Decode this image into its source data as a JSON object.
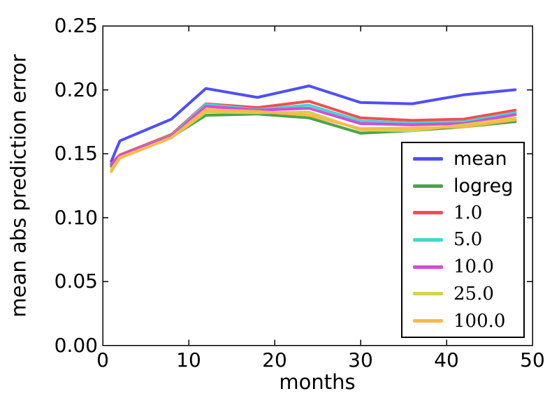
{
  "figure": {
    "background": "#ffffff",
    "axis_color": "#000000"
  },
  "chart_data": {
    "type": "line",
    "title": "",
    "xlabel": "months",
    "ylabel": "mean abs prediction error",
    "xlim": [
      0,
      50
    ],
    "ylim": [
      0,
      0.25
    ],
    "xticks": [
      "0",
      "10",
      "20",
      "30",
      "40",
      "50"
    ],
    "yticks": [
      "0.00",
      "0.05",
      "0.10",
      "0.15",
      "0.20",
      "0.25"
    ],
    "grid": false,
    "legend_position": "lower right",
    "x": [
      1,
      2,
      8,
      12,
      18,
      24,
      30,
      36,
      42,
      48
    ],
    "series": [
      {
        "name": "mean",
        "color": "#4f4ff5",
        "values": [
          0.144,
          0.16,
          0.177,
          0.201,
          0.194,
          0.203,
          0.19,
          0.189,
          0.196,
          0.2
        ]
      },
      {
        "name": "logreg",
        "color": "#4aa44a",
        "values": [
          0.14,
          0.148,
          0.163,
          0.18,
          0.181,
          0.178,
          0.166,
          0.168,
          0.171,
          0.175
        ]
      },
      {
        "name": "1.0",
        "color": "#f74c4c",
        "values": [
          0.142,
          0.149,
          0.165,
          0.189,
          0.186,
          0.191,
          0.178,
          0.176,
          0.177,
          0.184
        ]
      },
      {
        "name": "5.0",
        "color": "#44d4d4",
        "values": [
          0.1415,
          0.1485,
          0.164,
          0.1885,
          0.1845,
          0.188,
          0.1755,
          0.174,
          0.175,
          0.182
        ]
      },
      {
        "name": "10.0",
        "color": "#d44cd4",
        "values": [
          0.1415,
          0.1485,
          0.1635,
          0.187,
          0.184,
          0.1855,
          0.1735,
          0.1725,
          0.1735,
          0.1805
        ]
      },
      {
        "name": "25.0",
        "color": "#d2d24c",
        "values": [
          0.1375,
          0.147,
          0.1625,
          0.1825,
          0.182,
          0.1825,
          0.1685,
          0.168,
          0.1725,
          0.178
        ]
      },
      {
        "name": "100.0",
        "color": "#fab84c",
        "values": [
          0.136,
          0.1465,
          0.1625,
          0.1845,
          0.183,
          0.18,
          0.1695,
          0.17,
          0.171,
          0.1765
        ]
      }
    ]
  }
}
